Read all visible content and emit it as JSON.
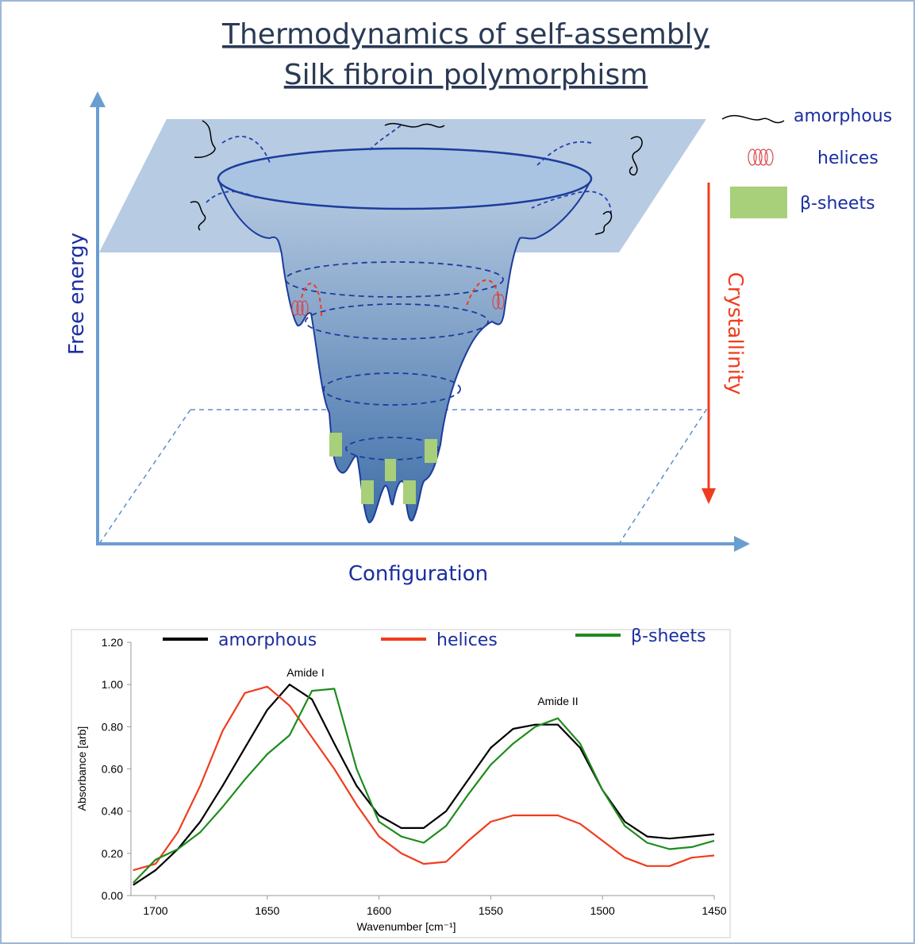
{
  "diagram": {
    "title": [
      "Thermodynamics of self-assembly",
      "Silk fibroin polymorphism"
    ],
    "y_axis_label": "Free energy",
    "x_axis_label": "Configuration",
    "arrow_label": "Crystallinity",
    "legend": [
      "amorphous",
      "helices",
      "β-sheets"
    ]
  },
  "chart_data": {
    "type": "line",
    "annotations": [
      "Amide I",
      "Amide II"
    ],
    "x_label": "Wavenumber [cm⁻¹]",
    "y_label": "Absorbance [arb]",
    "x": [
      1710,
      1700,
      1690,
      1680,
      1670,
      1660,
      1650,
      1640,
      1630,
      1620,
      1610,
      1600,
      1590,
      1580,
      1570,
      1560,
      1550,
      1540,
      1530,
      1520,
      1510,
      1500,
      1490,
      1480,
      1470,
      1460,
      1450
    ],
    "series": [
      {
        "name": "amorphous",
        "color": "#000000",
        "values": [
          0.05,
          0.12,
          0.22,
          0.35,
          0.52,
          0.7,
          0.88,
          1.0,
          0.93,
          0.72,
          0.52,
          0.38,
          0.32,
          0.32,
          0.4,
          0.55,
          0.7,
          0.79,
          0.81,
          0.81,
          0.7,
          0.5,
          0.35,
          0.28,
          0.27,
          0.28,
          0.29
        ]
      },
      {
        "name": "helices",
        "color": "#f03c1e",
        "values": [
          0.12,
          0.15,
          0.3,
          0.52,
          0.78,
          0.96,
          0.99,
          0.9,
          0.75,
          0.6,
          0.43,
          0.28,
          0.2,
          0.15,
          0.16,
          0.26,
          0.35,
          0.38,
          0.38,
          0.38,
          0.34,
          0.26,
          0.18,
          0.14,
          0.14,
          0.18,
          0.19
        ]
      },
      {
        "name": "β-sheets",
        "color": "#1e8c1e",
        "values": [
          0.06,
          0.17,
          0.22,
          0.3,
          0.42,
          0.55,
          0.67,
          0.76,
          0.97,
          0.98,
          0.6,
          0.35,
          0.28,
          0.25,
          0.33,
          0.48,
          0.62,
          0.72,
          0.8,
          0.84,
          0.72,
          0.5,
          0.33,
          0.25,
          0.22,
          0.23,
          0.26
        ]
      }
    ],
    "xlim": [
      1711,
      1450
    ],
    "xticks": [
      1700,
      1650,
      1600,
      1550,
      1500,
      1450
    ],
    "ylim": [
      0,
      1.2
    ],
    "yticks": [
      {
        "value": 0,
        "label": "0.00"
      },
      {
        "value": 0.2,
        "label": "0.20"
      },
      {
        "value": 0.4,
        "label": "0.40"
      },
      {
        "value": 0.6,
        "label": "0.60"
      },
      {
        "value": 0.8,
        "label": "0.80"
      },
      {
        "value": 1.0,
        "label": "1.00"
      },
      {
        "value": 1.2,
        "label": "1.20"
      }
    ]
  }
}
